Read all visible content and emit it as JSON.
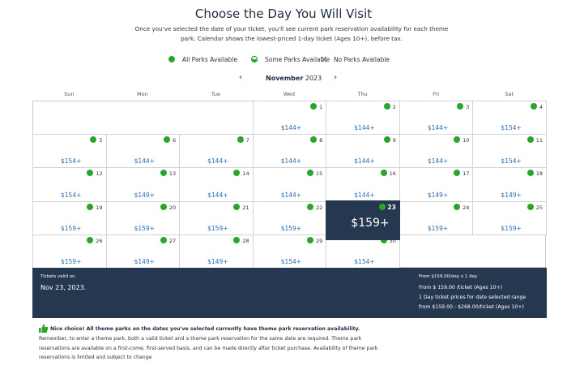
{
  "header": {
    "title": "Choose the Day You Will Visit",
    "subtitle": "Once you've selected the date of your ticket, you'll see current park reservation availability for each theme park. Calendar shows the lowest-priced 1-day ticket (Ages 10+), before tax."
  },
  "legend": [
    "All Parks Available",
    "Some Parks Available",
    "No Parks Available"
  ],
  "calendar": {
    "month": "November",
    "year": "2023",
    "weekdays": [
      "Sun",
      "Mon",
      "Tue",
      "Wed",
      "Thu",
      "Fri",
      "Sat"
    ],
    "selected_day": 23,
    "days": [
      {
        "day": 1,
        "price": "$144+"
      },
      {
        "day": 2,
        "price": "$144+"
      },
      {
        "day": 3,
        "price": "$144+"
      },
      {
        "day": 4,
        "price": "$154+"
      },
      {
        "day": 5,
        "price": "$154+"
      },
      {
        "day": 6,
        "price": "$144+"
      },
      {
        "day": 7,
        "price": "$144+"
      },
      {
        "day": 8,
        "price": "$144+"
      },
      {
        "day": 9,
        "price": "$144+"
      },
      {
        "day": 10,
        "price": "$144+"
      },
      {
        "day": 11,
        "price": "$154+"
      },
      {
        "day": 12,
        "price": "$154+"
      },
      {
        "day": 13,
        "price": "$149+"
      },
      {
        "day": 14,
        "price": "$144+"
      },
      {
        "day": 15,
        "price": "$144+"
      },
      {
        "day": 16,
        "price": "$144+"
      },
      {
        "day": 17,
        "price": "$149+"
      },
      {
        "day": 18,
        "price": "$149+"
      },
      {
        "day": 19,
        "price": "$159+"
      },
      {
        "day": 20,
        "price": "$159+"
      },
      {
        "day": 21,
        "price": "$159+"
      },
      {
        "day": 22,
        "price": "$159+"
      },
      {
        "day": 23,
        "price": "$159+"
      },
      {
        "day": 24,
        "price": "$159+"
      },
      {
        "day": 25,
        "price": "$159+"
      },
      {
        "day": 26,
        "price": "$159+"
      },
      {
        "day": 27,
        "price": "$149+"
      },
      {
        "day": 28,
        "price": "$149+"
      },
      {
        "day": 29,
        "price": "$154+"
      },
      {
        "day": 30,
        "price": "$154+"
      }
    ]
  },
  "summary": {
    "label": "Tickets valid on",
    "date": "Nov 23, 2023.",
    "lines": [
      "From $159.00/day x 1 day",
      "From $ 159.00 /ticket (Ages 10+)",
      "1 Day ticket prices for date selected range",
      "from $159.00 - $268.00/ticket (Ages 10+)"
    ]
  },
  "notice": {
    "headline": "Nice choice! All theme parks on the dates you've selected currently have theme park reservation availability.",
    "body": "Remember, to enter a theme park, both a valid ticket and a theme park reservation for the same date are required. Theme park reservations are available on a first-come, first-served basis, and can be made directly after ticket purchase. Availability of theme park reservations is limited and subject to change"
  }
}
